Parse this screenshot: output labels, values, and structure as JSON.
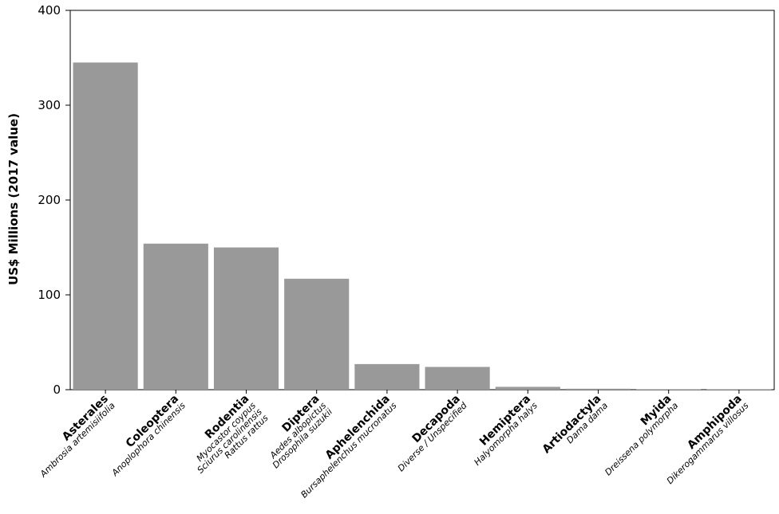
{
  "chart_data": {
    "type": "bar",
    "ylabel": "US$ Millions (2017 value)",
    "categories": [
      "Asterales",
      "Coleoptera",
      "Rodentia",
      "Diptera",
      "Aphelenchida",
      "Decapoda",
      "Hemiptera",
      "Artiodactyla",
      "Myida",
      "Amphipoda"
    ],
    "species": [
      [
        "Ambrosia artemisiifolia"
      ],
      [
        "Anoplophora chinensis"
      ],
      [
        "Myocastor coypus",
        "Sciurus carolinensis",
        "Rattus rattus"
      ],
      [
        "Aedes albopictus",
        "Drosophila suzukii"
      ],
      [
        "Bursaphelenchus mucronatus"
      ],
      [
        "Diverse / Unspecified"
      ],
      [
        "Halyomorpha halys"
      ],
      [
        "Dama dama"
      ],
      [
        "Dreissena polymorpha"
      ],
      [
        "Dikerogammarus villosus"
      ]
    ],
    "values": [
      345,
      154,
      150,
      117,
      27,
      24,
      3,
      1,
      0.5,
      0.5
    ],
    "color": "#999999",
    "ylim": [
      0,
      400
    ],
    "yticks": [
      0,
      100,
      200,
      300,
      400
    ],
    "grid": false
  }
}
